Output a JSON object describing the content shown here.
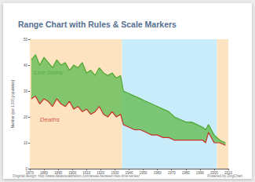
{
  "chart_data": {
    "type": "range",
    "title": "Range Chart with Rules & Scale Markers",
    "y_label": "Number (per 1,000 population)",
    "x": [
      1871,
      1874,
      1877,
      1880,
      1883,
      1886,
      1889,
      1892,
      1895,
      1898,
      1901,
      1904,
      1907,
      1910,
      1913,
      1916,
      1919,
      1922,
      1925,
      1928,
      1931,
      1934,
      1936,
      1940,
      1944,
      1948,
      1952,
      1956,
      1960,
      1964,
      1968,
      1972,
      1976,
      1980,
      1984,
      1988,
      1992,
      1994,
      1996,
      2000,
      2004,
      2008
    ],
    "series": [
      {
        "name": "Live births",
        "color": "#4ea72e",
        "values": [
          42,
          44,
          40,
          43,
          41,
          39,
          42,
          40,
          41,
          38,
          40,
          39,
          41,
          37,
          38,
          36,
          39,
          37,
          36,
          37,
          35,
          36,
          30,
          29,
          28,
          27,
          26,
          25,
          24,
          23,
          22,
          20,
          19,
          18,
          18,
          17,
          16,
          15,
          17,
          13,
          11,
          10
        ]
      },
      {
        "name": "Deaths",
        "color": "#c9302c",
        "values": [
          27,
          28,
          25,
          27,
          26,
          24,
          27,
          25,
          24,
          26,
          23,
          24,
          22,
          23,
          21,
          22,
          24,
          21,
          20,
          22,
          20,
          21,
          17,
          16,
          15,
          15,
          14,
          13,
          13,
          12,
          12,
          11,
          11,
          11,
          11,
          11,
          11,
          10,
          14,
          10,
          10,
          9
        ]
      }
    ],
    "fill_color": "#6cc05e",
    "bands": [
      {
        "from": 1870,
        "to": 1935,
        "color": "#fde3bf"
      },
      {
        "from": 1935,
        "to": 2002,
        "color": "#c9ecfb"
      },
      {
        "from": 2002,
        "to": 2010,
        "color": "#fde3bf"
      }
    ],
    "annotations": [
      {
        "text": "Live births",
        "x": 1883,
        "y": 37,
        "color": "#4ea72e"
      },
      {
        "text": "Deaths",
        "x": 1884,
        "y": 19,
        "color": "#c9302c"
      }
    ],
    "footer": [
      "Original design: http://www.datavisualization.com/areas-between-two-time-series/",
      "Powered by ZingChart"
    ],
    "xlim": [
      1870,
      2010
    ],
    "xticks": [
      1870,
      1880,
      1890,
      1900,
      1910,
      1920,
      1930,
      1940,
      1950,
      1960,
      1970,
      1980,
      1990,
      2000,
      2010
    ],
    "ylim": [
      0,
      50
    ],
    "yticks": [
      0,
      10,
      20,
      30,
      40,
      50
    ],
    "grid": false
  }
}
